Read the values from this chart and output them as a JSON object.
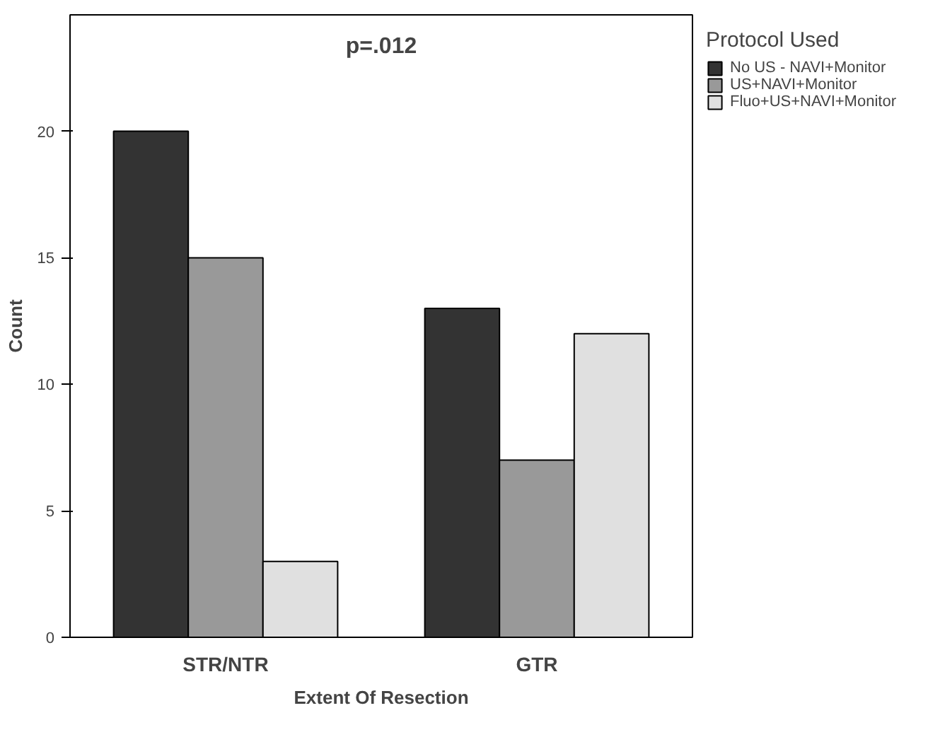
{
  "chart_data": {
    "type": "bar",
    "categories": [
      "STR/NTR",
      "GTR"
    ],
    "series": [
      {
        "name": "No US - NAVI+Monitor",
        "color": "#333333",
        "values": [
          20,
          13
        ]
      },
      {
        "name": "US+NAVI+Monitor",
        "color": "#999999",
        "values": [
          15,
          7
        ]
      },
      {
        "name": "Fluo+US+NAVI+Monitor",
        "color": "#e0e0e0",
        "values": [
          3,
          12
        ]
      }
    ],
    "xlabel": "Extent Of Resection",
    "ylabel": "Count",
    "legend_title": "Protocol Used",
    "annotations": [
      "p=.012"
    ],
    "ylim": [
      0,
      24.6
    ],
    "yticks": [
      0,
      5,
      10,
      15,
      20
    ],
    "legend": "right"
  }
}
